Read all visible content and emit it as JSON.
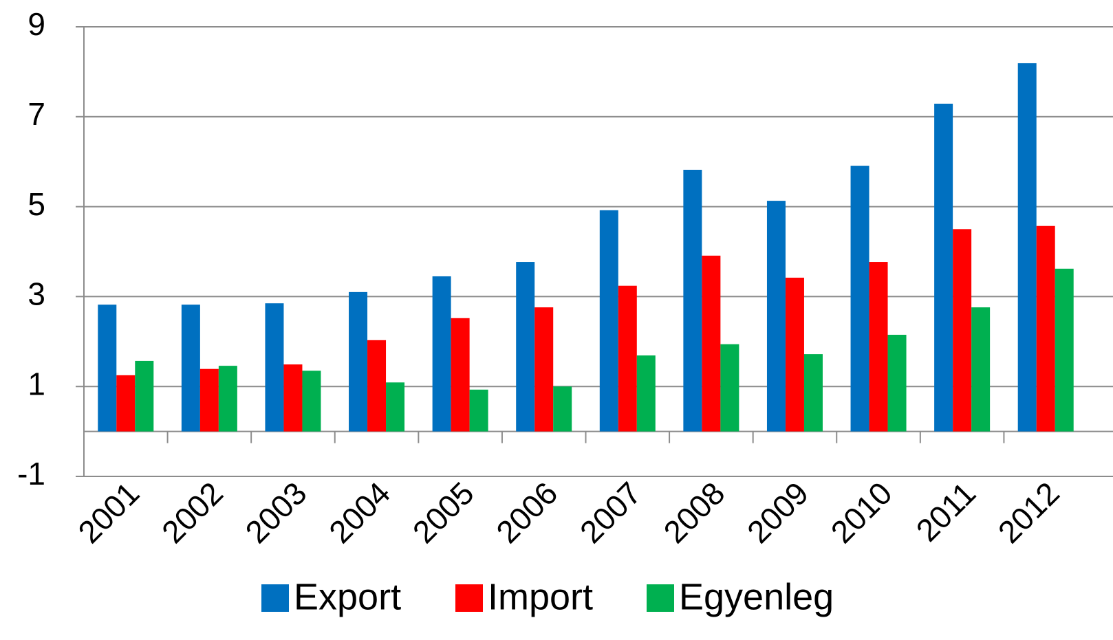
{
  "chart_data": {
    "type": "bar",
    "categories": [
      "2001",
      "2002",
      "2003",
      "2004",
      "2005",
      "2006",
      "2007",
      "2008",
      "2009",
      "2010",
      "2011",
      "2012"
    ],
    "series": [
      {
        "name": "Export",
        "color": "#0070c0",
        "values": [
          2.82,
          2.82,
          2.85,
          3.1,
          3.45,
          3.77,
          4.92,
          5.82,
          5.13,
          5.91,
          7.29,
          8.19
        ]
      },
      {
        "name": "Import",
        "color": "#ff0000",
        "values": [
          1.25,
          1.39,
          1.49,
          2.03,
          2.52,
          2.76,
          3.24,
          3.91,
          3.42,
          3.77,
          4.5,
          4.57
        ]
      },
      {
        "name": "Egyenleg",
        "color": "#00b050",
        "values": [
          1.57,
          1.46,
          1.35,
          1.09,
          0.93,
          1.0,
          1.69,
          1.94,
          1.72,
          2.15,
          2.76,
          3.62
        ]
      }
    ],
    "ylim": [
      -1,
      9
    ],
    "yticks": [
      -1,
      1,
      3,
      5,
      7,
      9
    ],
    "grid": true,
    "legend": "bottom"
  }
}
